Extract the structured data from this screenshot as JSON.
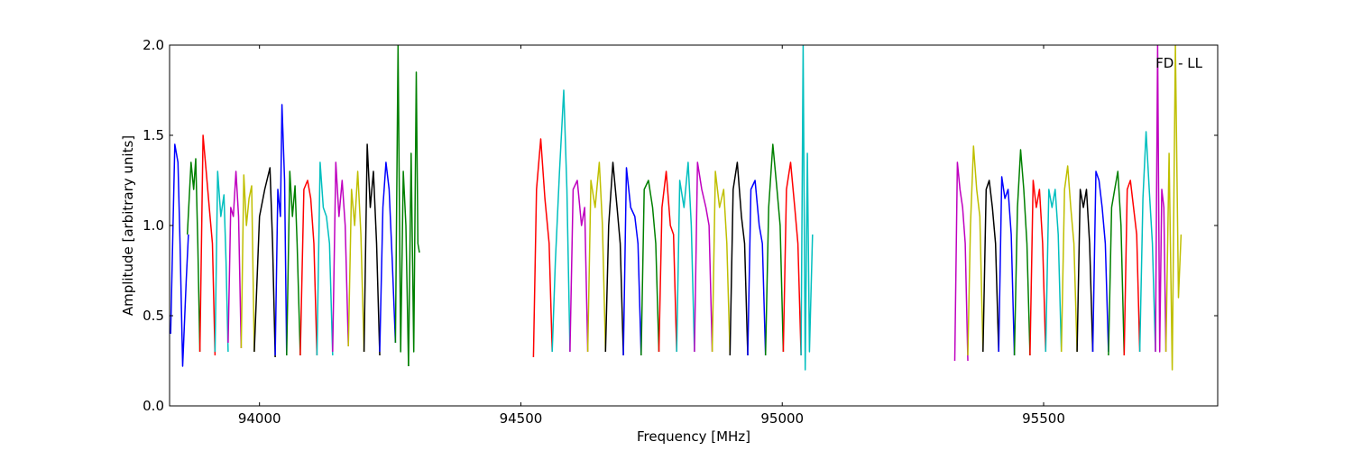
{
  "chart_data": {
    "type": "line",
    "title": "",
    "annotation": "FD - LL",
    "legend": "none",
    "grid": false,
    "xlabel": "Frequency [MHz]",
    "ylabel": "Amplitude [arbitrary units]",
    "xlim": [
      93828,
      95833
    ],
    "ylim": [
      0.0,
      2.0
    ],
    "xticks": [
      94000,
      94500,
      95000,
      95500
    ],
    "xtick_labels": [
      "94000",
      "94500",
      "95000",
      "95500"
    ],
    "yticks": [
      0.0,
      0.5,
      1.0,
      1.5,
      2.0
    ],
    "ytick_labels": [
      "0.0",
      "0.5",
      "1.0",
      "1.5",
      "2.0"
    ],
    "colors": [
      "#0000ff",
      "#008000",
      "#ff0000",
      "#00bfbf",
      "#bf00bf",
      "#bfbf00",
      "#000000"
    ],
    "series": [
      {
        "color": "#0000ff",
        "x": [
          93830,
          93838,
          93844,
          93848,
          93853,
          93860,
          93864
        ],
        "y": [
          0.4,
          1.45,
          1.35,
          0.9,
          0.22,
          0.7,
          0.95
        ]
      },
      {
        "color": "#008000",
        "x": [
          93862,
          93869,
          93874,
          93878,
          93882,
          93886
        ],
        "y": [
          0.95,
          1.35,
          1.2,
          1.37,
          0.9,
          0.3
        ]
      },
      {
        "color": "#ff0000",
        "x": [
          93886,
          93892,
          93898,
          93904,
          93910,
          93915
        ],
        "y": [
          0.3,
          1.5,
          1.3,
          1.1,
          0.9,
          0.28
        ]
      },
      {
        "color": "#00bfbf",
        "x": [
          93915,
          93920,
          93926,
          93932,
          93936,
          93940
        ],
        "y": [
          0.3,
          1.3,
          1.05,
          1.17,
          0.8,
          0.3
        ]
      },
      {
        "color": "#bf00bf",
        "x": [
          93940,
          93945,
          93950,
          93955,
          93960,
          93965
        ],
        "y": [
          0.35,
          1.1,
          1.05,
          1.3,
          1.05,
          0.32
        ]
      },
      {
        "color": "#bfbf00",
        "x": [
          93965,
          93970,
          93975,
          93980,
          93985,
          93990
        ],
        "y": [
          0.32,
          1.28,
          1.0,
          1.15,
          1.22,
          0.3
        ]
      },
      {
        "color": "#000000",
        "x": [
          93990,
          94000,
          94010,
          94020,
          94025,
          94030
        ],
        "y": [
          0.3,
          1.05,
          1.2,
          1.32,
          0.9,
          0.27
        ]
      },
      {
        "color": "#0000ff",
        "x": [
          94030,
          94035,
          94040,
          94043,
          94048,
          94052
        ],
        "y": [
          0.28,
          1.2,
          1.05,
          1.67,
          1.25,
          0.28
        ]
      },
      {
        "color": "#008000",
        "x": [
          94052,
          94058,
          94063,
          94068,
          94072,
          94078
        ],
        "y": [
          0.28,
          1.3,
          1.05,
          1.22,
          0.9,
          0.28
        ]
      },
      {
        "color": "#ff0000",
        "x": [
          94078,
          94085,
          94092,
          94098,
          94104,
          94110
        ],
        "y": [
          0.28,
          1.2,
          1.25,
          1.15,
          0.9,
          0.28
        ]
      },
      {
        "color": "#00bfbf",
        "x": [
          94110,
          94116,
          94122,
          94128,
          94134,
          94140
        ],
        "y": [
          0.28,
          1.35,
          1.1,
          1.05,
          0.9,
          0.28
        ]
      },
      {
        "color": "#bf00bf",
        "x": [
          94140,
          94146,
          94152,
          94158,
          94164,
          94170
        ],
        "y": [
          0.3,
          1.35,
          1.05,
          1.25,
          1.0,
          0.33
        ]
      },
      {
        "color": "#bfbf00",
        "x": [
          94170,
          94176,
          94182,
          94188,
          94194,
          94200
        ],
        "y": [
          0.33,
          1.2,
          1.0,
          1.3,
          0.95,
          0.3
        ]
      },
      {
        "color": "#000000",
        "x": [
          94200,
          94206,
          94212,
          94218,
          94224,
          94230
        ],
        "y": [
          0.3,
          1.45,
          1.1,
          1.3,
          0.9,
          0.28
        ]
      },
      {
        "color": "#0000ff",
        "x": [
          94230,
          94236,
          94242,
          94248,
          94254,
          94260
        ],
        "y": [
          0.3,
          1.1,
          1.35,
          1.2,
          0.8,
          0.35
        ]
      },
      {
        "color": "#008000",
        "x": [
          94260,
          94265,
          94270,
          94275,
          94280,
          94285
        ],
        "y": [
          0.35,
          2.0,
          0.3,
          1.3,
          1.0,
          0.22
        ]
      },
      {
        "color": "#008000",
        "x": [
          94285,
          94290,
          94295,
          94300,
          94303,
          94306
        ],
        "y": [
          0.22,
          1.4,
          0.3,
          1.85,
          0.9,
          0.85
        ]
      },
      {
        "color": "#ff0000",
        "x": [
          94524,
          94530,
          94538,
          94546,
          94554,
          94560
        ],
        "y": [
          0.27,
          1.2,
          1.48,
          1.15,
          0.9,
          0.3
        ]
      },
      {
        "color": "#00bfbf",
        "x": [
          94560,
          94566,
          94574,
          94582,
          94588,
          94594
        ],
        "y": [
          0.3,
          0.8,
          1.3,
          1.75,
          1.2,
          0.3
        ]
      },
      {
        "color": "#bf00bf",
        "x": [
          94594,
          94600,
          94608,
          94616,
          94622,
          94628
        ],
        "y": [
          0.3,
          1.2,
          1.25,
          1.0,
          1.1,
          0.3
        ]
      },
      {
        "color": "#bfbf00",
        "x": [
          94628,
          94634,
          94642,
          94650,
          94656,
          94662
        ],
        "y": [
          0.3,
          1.25,
          1.1,
          1.35,
          1.0,
          0.3
        ]
      },
      {
        "color": "#000000",
        "x": [
          94662,
          94668,
          94676,
          94684,
          94690,
          94696
        ],
        "y": [
          0.3,
          1.0,
          1.35,
          1.1,
          0.9,
          0.28
        ]
      },
      {
        "color": "#0000ff",
        "x": [
          94696,
          94702,
          94710,
          94718,
          94724,
          94730
        ],
        "y": [
          0.28,
          1.32,
          1.1,
          1.05,
          0.9,
          0.28
        ]
      },
      {
        "color": "#008000",
        "x": [
          94730,
          94736,
          94744,
          94752,
          94758,
          94764
        ],
        "y": [
          0.28,
          1.2,
          1.25,
          1.1,
          0.9,
          0.3
        ]
      },
      {
        "color": "#ff0000",
        "x": [
          94764,
          94770,
          94778,
          94786,
          94792,
          94798
        ],
        "y": [
          0.3,
          1.1,
          1.3,
          1.0,
          0.95,
          0.3
        ]
      },
      {
        "color": "#00bfbf",
        "x": [
          94798,
          94804,
          94812,
          94820,
          94826,
          94832
        ],
        "y": [
          0.3,
          1.25,
          1.1,
          1.35,
          1.0,
          0.3
        ]
      },
      {
        "color": "#bf00bf",
        "x": [
          94832,
          94838,
          94846,
          94854,
          94860,
          94866
        ],
        "y": [
          0.3,
          1.35,
          1.2,
          1.1,
          1.0,
          0.3
        ]
      },
      {
        "color": "#bfbf00",
        "x": [
          94866,
          94872,
          94880,
          94888,
          94894,
          94900
        ],
        "y": [
          0.3,
          1.3,
          1.1,
          1.2,
          0.9,
          0.28
        ]
      },
      {
        "color": "#000000",
        "x": [
          94900,
          94906,
          94914,
          94922,
          94928,
          94934
        ],
        "y": [
          0.28,
          1.2,
          1.35,
          1.05,
          0.9,
          0.28
        ]
      },
      {
        "color": "#0000ff",
        "x": [
          94934,
          94940,
          94948,
          94956,
          94962,
          94968
        ],
        "y": [
          0.28,
          1.2,
          1.25,
          1.0,
          0.9,
          0.28
        ]
      },
      {
        "color": "#008000",
        "x": [
          94968,
          94974,
          94982,
          94990,
          94996,
          95002
        ],
        "y": [
          0.28,
          1.1,
          1.45,
          1.2,
          1.0,
          0.3
        ]
      },
      {
        "color": "#ff0000",
        "x": [
          95002,
          95008,
          95016,
          95024,
          95030,
          95036
        ],
        "y": [
          0.3,
          1.2,
          1.35,
          1.1,
          0.9,
          0.28
        ]
      },
      {
        "color": "#00bfbf",
        "x": [
          95036,
          95040,
          95044,
          95048,
          95052,
          95058
        ],
        "y": [
          0.28,
          2.0,
          0.2,
          1.4,
          0.3,
          0.95
        ]
      },
      {
        "color": "#bf00bf",
        "x": [
          95330,
          95335,
          95340,
          95345,
          95350,
          95355
        ],
        "y": [
          0.25,
          1.35,
          1.2,
          1.1,
          0.9,
          0.25
        ]
      },
      {
        "color": "#bfbf00",
        "x": [
          95355,
          95360,
          95366,
          95372,
          95378,
          95384
        ],
        "y": [
          0.28,
          1.0,
          1.44,
          1.2,
          1.05,
          0.3
        ]
      },
      {
        "color": "#000000",
        "x": [
          95384,
          95390,
          95396,
          95402,
          95408,
          95414
        ],
        "y": [
          0.3,
          1.2,
          1.25,
          1.1,
          0.9,
          0.3
        ]
      },
      {
        "color": "#0000ff",
        "x": [
          95414,
          95420,
          95426,
          95432,
          95438,
          95444
        ],
        "y": [
          0.3,
          1.27,
          1.15,
          1.2,
          0.95,
          0.28
        ]
      },
      {
        "color": "#008000",
        "x": [
          95444,
          95450,
          95456,
          95462,
          95468,
          95474
        ],
        "y": [
          0.28,
          1.1,
          1.42,
          1.2,
          0.9,
          0.28
        ]
      },
      {
        "color": "#ff0000",
        "x": [
          95474,
          95480,
          95486,
          95492,
          95498,
          95504
        ],
        "y": [
          0.28,
          1.25,
          1.1,
          1.2,
          0.9,
          0.3
        ]
      },
      {
        "color": "#00bfbf",
        "x": [
          95504,
          95510,
          95516,
          95522,
          95528,
          95534
        ],
        "y": [
          0.3,
          1.2,
          1.1,
          1.2,
          0.95,
          0.3
        ]
      },
      {
        "color": "#bfbf00",
        "x": [
          95534,
          95540,
          95546,
          95552,
          95558,
          95564
        ],
        "y": [
          0.3,
          1.2,
          1.33,
          1.1,
          0.9,
          0.3
        ]
      },
      {
        "color": "#000000",
        "x": [
          95564,
          95570,
          95576,
          95582,
          95588,
          95594
        ],
        "y": [
          0.3,
          1.2,
          1.1,
          1.2,
          0.9,
          0.3
        ]
      },
      {
        "color": "#0000ff",
        "x": [
          95594,
          95600,
          95606,
          95612,
          95618,
          95624
        ],
        "y": [
          0.3,
          1.3,
          1.25,
          1.1,
          0.9,
          0.3
        ]
      },
      {
        "color": "#008000",
        "x": [
          95624,
          95630,
          95636,
          95642,
          95648,
          95654
        ],
        "y": [
          0.28,
          1.1,
          1.2,
          1.3,
          1.0,
          0.28
        ]
      },
      {
        "color": "#ff0000",
        "x": [
          95654,
          95660,
          95666,
          95672,
          95678,
          95684
        ],
        "y": [
          0.28,
          1.2,
          1.25,
          1.1,
          0.95,
          0.3
        ]
      },
      {
        "color": "#00bfbf",
        "x": [
          95684,
          95690,
          95696,
          95702,
          95708,
          95714
        ],
        "y": [
          0.3,
          1.15,
          1.52,
          1.2,
          0.9,
          0.3
        ]
      },
      {
        "color": "#bf00bf",
        "x": [
          95714,
          95718,
          95722,
          95726,
          95730,
          95734
        ],
        "y": [
          0.3,
          2.0,
          0.3,
          1.2,
          1.1,
          0.3
        ]
      },
      {
        "color": "#bfbf00",
        "x": [
          95734,
          95740,
          95746,
          95752,
          95758,
          95763
        ],
        "y": [
          0.3,
          1.4,
          0.2,
          2.0,
          0.6,
          0.95
        ]
      }
    ]
  }
}
